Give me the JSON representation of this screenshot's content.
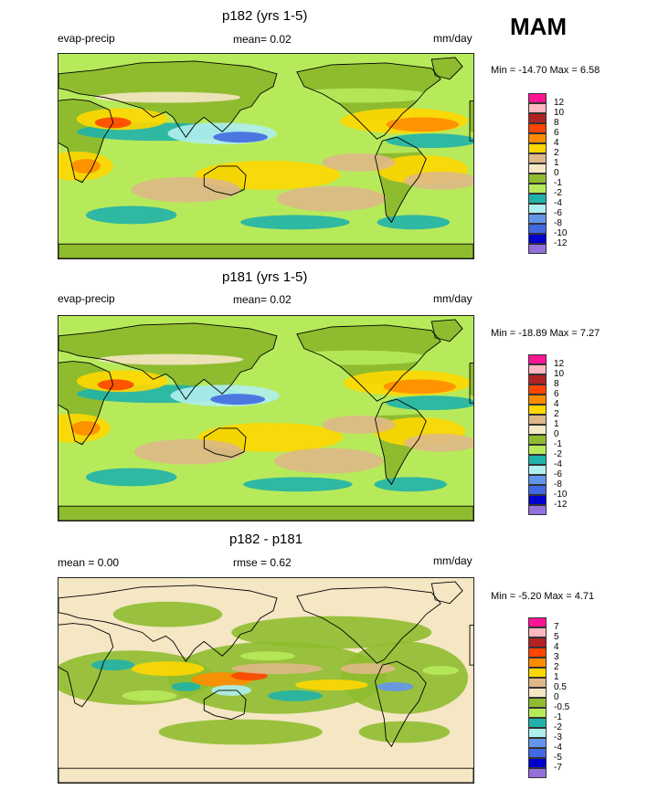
{
  "season": "MAM",
  "panels": [
    {
      "title": "p182 (yrs 1-5)",
      "left_label": "evap-precip",
      "center_label": "mean=  0.02",
      "right_label": "mm/day",
      "minmax": "Min = -14.70 Max =   6.58",
      "palette": "base",
      "legend_labels": [
        "12",
        "10",
        "8",
        "6",
        "4",
        "2",
        "1",
        "0",
        "-1",
        "-2",
        "-4",
        "-6",
        "-8",
        "-10",
        "-12"
      ]
    },
    {
      "title": "p181 (yrs 1-5)",
      "left_label": "evap-precip",
      "center_label": "mean=  0.02",
      "right_label": "mm/day",
      "minmax": "Min = -18.89 Max =   7.27",
      "palette": "base",
      "legend_labels": [
        "12",
        "10",
        "8",
        "6",
        "4",
        "2",
        "1",
        "0",
        "-1",
        "-2",
        "-4",
        "-6",
        "-8",
        "-10",
        "-12"
      ]
    },
    {
      "title": "p182 - p181",
      "left_label": "mean =   0.00",
      "center_label": "rmse =  0.62",
      "right_label": "mm/day",
      "minmax": "Min =  -5.20 Max =   4.71",
      "palette": "diff",
      "legend_labels": [
        "7",
        "5",
        "4",
        "3",
        "2",
        "1",
        "0.5",
        "0",
        "-0.5",
        "-1",
        "-2",
        "-3",
        "-4",
        "-5",
        "-7"
      ]
    }
  ],
  "colors": {
    "legend": [
      "#ff1493",
      "#ffb6c1",
      "#b22222",
      "#ff4500",
      "#ff8c00",
      "#ffd700",
      "#deb887",
      "#f5e6c4",
      "#8fbc2f",
      "#b7ea5b",
      "#20b2aa",
      "#afeeee",
      "#6495ed",
      "#4169e1",
      "#0000cd",
      "#9370db"
    ],
    "ocean_base": "#b7ea5b",
    "land_base": "#8fbc2f",
    "diff_bg": "#f5e6c4",
    "coast": "#000000"
  }
}
